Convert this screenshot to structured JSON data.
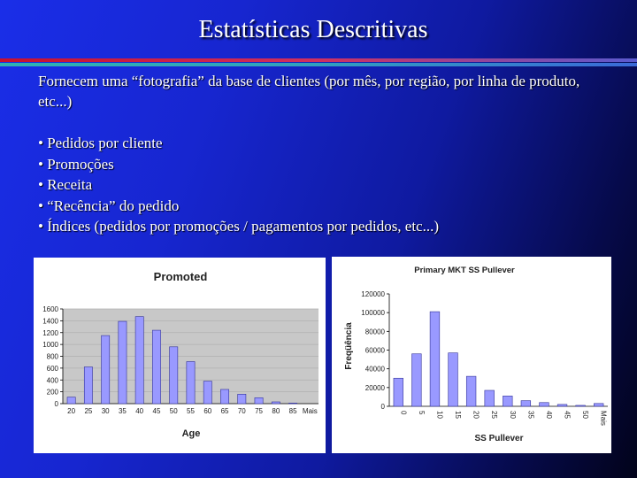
{
  "slide": {
    "title": "Estatísticas Descritivas",
    "intro": "Fornecem uma “fotografia” da base de clientes (por mês, por região, por linha de produto, etc...)",
    "bullets": [
      "• Pedidos por cliente",
      "• Promoções",
      "• Receita",
      "• “Recência” do pedido",
      "• Índices (pedidos por promoções / pagamentos por pedidos, etc...)"
    ]
  },
  "colors": {
    "bar_fill": "#9999ff",
    "bar_stroke": "#333399"
  },
  "chart_data": [
    {
      "type": "bar",
      "title": "Promoted",
      "xlabel": "Age",
      "ylabel": "",
      "categories": [
        "20",
        "25",
        "30",
        "35",
        "40",
        "45",
        "50",
        "55",
        "60",
        "65",
        "70",
        "75",
        "80",
        "85",
        "Mais"
      ],
      "values": [
        110,
        620,
        1150,
        1390,
        1470,
        1240,
        960,
        710,
        380,
        240,
        160,
        100,
        30,
        10,
        0
      ],
      "ylim": [
        0,
        1600
      ],
      "yticks": [
        "0",
        "200",
        "400",
        "600",
        "800",
        "1000",
        "1200",
        "1400",
        "1600"
      ],
      "grid": true
    },
    {
      "type": "bar",
      "title": "Primary MKT SS Pullever",
      "xlabel": "SS Pullever",
      "ylabel": "Freqüência",
      "categories": [
        "0",
        "5",
        "10",
        "15",
        "20",
        "25",
        "30",
        "35",
        "40",
        "45",
        "50",
        "Mais"
      ],
      "values": [
        30000,
        56000,
        101000,
        57000,
        32000,
        17000,
        11000,
        6000,
        4000,
        2000,
        1000,
        3000
      ],
      "ylim": [
        0,
        120000
      ],
      "yticks": [
        "0",
        "20000",
        "40000",
        "60000",
        "80000",
        "100000",
        "120000"
      ],
      "grid": false
    }
  ]
}
